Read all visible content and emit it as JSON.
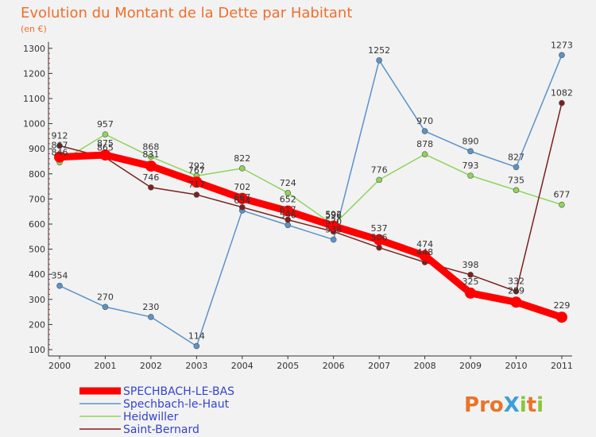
{
  "title": "Evolution du Montant de la Dette par Habitant",
  "subtitle": "(en €)",
  "logo": "ProXiti",
  "colors": {
    "background": "#f2f2f2",
    "title": "#ee6f2d",
    "legend_text": "#3345cc"
  },
  "chart_data": {
    "type": "line",
    "title": "Evolution du Montant de la Dette par Habitant",
    "subtitle": "(en €)",
    "x": [
      "2000",
      "2001",
      "2002",
      "2003",
      "2004",
      "2005",
      "2006",
      "2007",
      "2008",
      "2009",
      "2010",
      "2011"
    ],
    "ylim": [
      100,
      1300
    ],
    "yticks": [
      100,
      200,
      300,
      400,
      500,
      600,
      700,
      800,
      900,
      1000,
      1100,
      1200,
      1300
    ],
    "grid": false,
    "legend_position": "bottom-left",
    "series": [
      {
        "name": "SPECHBACH-LE-BAS",
        "color": "#ff0000",
        "values": [
          867,
          875,
          831,
          767,
          702,
          652,
          592,
          537,
          474,
          325,
          289,
          229
        ],
        "labels": [
          "867",
          "875",
          "831",
          "767",
          "702",
          "652",
          "592",
          "537",
          "474",
          "325",
          "289",
          "229"
        ]
      },
      {
        "name": "Spechbach-le-Haut",
        "color": "#5a93c8",
        "values": [
          354,
          270,
          230,
          114,
          654,
          596,
          538,
          1252,
          970,
          890,
          827,
          1273
        ],
        "labels": [
          "354",
          "270",
          "230",
          "114",
          "654",
          "596",
          "538",
          "1252",
          "970",
          "890",
          "827",
          "1273"
        ]
      },
      {
        "name": "Heidwiller",
        "color": "#8ed45a",
        "values": [
          846,
          957,
          868,
          792,
          822,
          724,
          596,
          776,
          878,
          793,
          735,
          677
        ],
        "labels": [
          "846",
          "957",
          "868",
          "792",
          "822",
          "724",
          "596",
          "776",
          "878",
          "793",
          "735",
          "677"
        ]
      },
      {
        "name": "Saint-Bernard",
        "color": "#7a2020",
        "values": [
          912,
          865,
          746,
          717,
          667,
          617,
          570,
          506,
          448,
          398,
          332,
          1082
        ],
        "labels": [
          "912",
          "865",
          "746",
          "717",
          "667",
          "617",
          "570",
          "506",
          "448",
          "398",
          "332",
          "1082"
        ]
      }
    ]
  }
}
